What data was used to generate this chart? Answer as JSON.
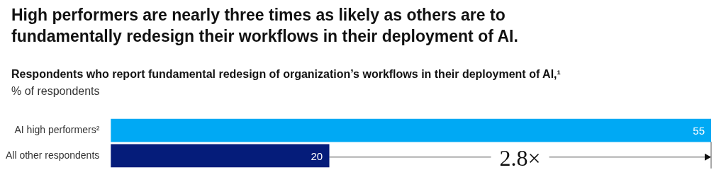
{
  "chart_data": {
    "type": "bar",
    "orientation": "horizontal",
    "title": "High performers are nearly three times as likely as others are to fundamentally redesign their workflows in their deployment of AI.",
    "subtitle": "Respondents who report fundamental redesign of organization’s workflows in their deployment of AI,¹",
    "xlabel": "% of respondents",
    "categories": [
      "AI high performers²",
      "All other respondents"
    ],
    "values": [
      55,
      20
    ],
    "colors": [
      "#00a9f4",
      "#051c7a"
    ],
    "xlim": [
      0,
      55
    ],
    "tick_labels": "y",
    "data_labels": true,
    "annotations": [
      "2.8×"
    ]
  }
}
